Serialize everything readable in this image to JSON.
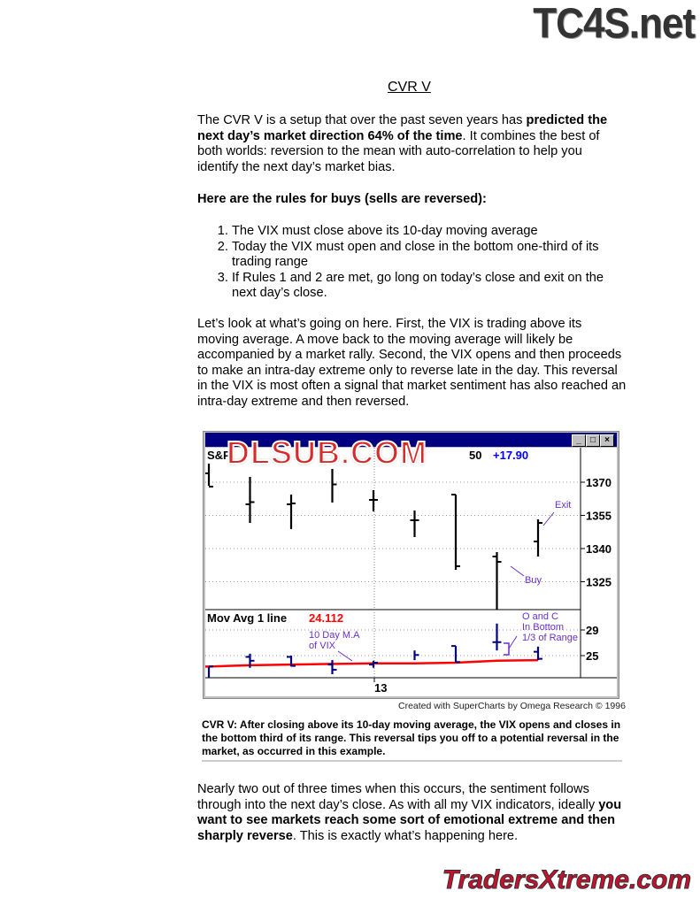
{
  "logos": {
    "top": "TC4S.net",
    "watermark": "DLSUB.COM",
    "bottom": "TradersXtreme.com"
  },
  "title": "CVR V",
  "intro": {
    "p1a": "The CVR V is a setup that over the past seven years has ",
    "p1b": "predicted the next day’s market direction 64% of the time",
    "p1c": ". It combines the best of both worlds: reversion to the mean with auto-correlation to help you identify the next day’s market bias."
  },
  "rules_heading": "Here are the rules for buys (sells are reversed):",
  "rules": [
    "The VIX must close above its 10-day moving average",
    "Today the VIX must open and close in the bottom one-third of its trading range",
    "If Rules 1 and 2 are met, go long on today’s close and exit on the next day’s close."
  ],
  "explanation": "Let’s look at what’s going on here. First, the VIX is trading above its moving average. A move back to the moving average will likely be accompanied by a market rally. Second, the VIX opens and then proceeds to make an intra-day extreme only to reverse late in the day. This reversal in the VIX is most often a signal that market sentiment has also reached an intra-day extreme and then reversed.",
  "chart_window": {
    "buttons": [
      "_",
      "□",
      "×"
    ]
  },
  "chart_data": {
    "type": "ohlc",
    "price_panel": {
      "label": "S&P",
      "last_fragment": "50",
      "change": "+17.90",
      "change_color": "#0000ff",
      "yticks": [
        1370,
        1355,
        1340,
        1325
      ],
      "ylim": [
        1312,
        1382
      ],
      "bars": [
        {
          "o": 1374,
          "h": 1378.4,
          "l": 1368.4,
          "c": 1368
        },
        {
          "o": 1360,
          "h": 1372.4,
          "l": 1351.6,
          "c": 1361
        },
        {
          "o": 1360,
          "h": 1364.4,
          "l": 1348.8,
          "c": 1360.4
        },
        {
          "o": null,
          "h": 1376,
          "l": 1360.8,
          "c": 1369
        },
        {
          "o": 1362,
          "h": 1366.4,
          "l": 1356.8,
          "c": 1362
        },
        {
          "o": 1352.8,
          "h": 1357.2,
          "l": 1345.2,
          "c": 1352.8
        },
        {
          "o": 1364.4,
          "h": 1364.4,
          "l": 1330.4,
          "c": 1332
        },
        {
          "o": 1336.4,
          "h": 1338.4,
          "l": 1312,
          "c": 1334
        },
        {
          "o": 1343.2,
          "h": 1353.2,
          "l": 1336.4,
          "c": 1351.6
        }
      ],
      "annotations": {
        "buy": "Buy",
        "exit": "Exit"
      }
    },
    "vix_panel": {
      "label": "Mov Avg 1 line",
      "value": "24.112",
      "value_color": "#ff0000",
      "bar_color": "#000080",
      "ma_color": "#ff0000",
      "yticks": [
        29,
        25
      ],
      "ylim": [
        21.3,
        31.5
      ],
      "bars": [
        {
          "o": null,
          "h": 23.2,
          "l": 21.4,
          "c": 23.3
        },
        {
          "o": 24.8,
          "h": 25.3,
          "l": 23.1,
          "c": 24.2
        },
        {
          "o": 24.8,
          "h": 25,
          "l": 23.3,
          "c": 23.4
        },
        {
          "o": 23.6,
          "h": 24.3,
          "l": 22.1,
          "c": 22.8
        },
        {
          "o": 23.6,
          "h": 24.2,
          "l": 23.1,
          "c": 23.9
        },
        {
          "o": null,
          "h": 25.8,
          "l": 24.3,
          "c": 25.1
        },
        {
          "o": 26.5,
          "h": 26.5,
          "l": 23.9,
          "c": 24.0
        },
        {
          "o": 27.1,
          "h": 30,
          "l": 25.8,
          "c": 27.1
        },
        {
          "o": 25.6,
          "h": 26.4,
          "l": 24.3,
          "c": 24.5
        }
      ],
      "ma": [
        23.3,
        23.5,
        23.6,
        23.7,
        23.8,
        23.8,
        23.9,
        24.2,
        24.3
      ],
      "annotations": {
        "ma_label_1": "10 Day M.A",
        "ma_label_2": "of VIX",
        "oc_1": "O and C",
        "oc_2": "In Bottom",
        "oc_3": "1/3 of Range"
      }
    },
    "xtick": "13"
  },
  "credit": "Created with SuperCharts by Omega Research © 1996",
  "caption": "CVR V: After closing above its 10-day moving average, the VIX opens and closes in the bottom third of its range. This reversal tips you off to a potential reversal in the market, as occurred in this example.",
  "closing": {
    "a": "Nearly two out of three times when this occurs, the sentiment follows through into the next day’s close. As with all my VIX indicators, ideally ",
    "b": "you want to see markets reach some sort of emotional extreme and then sharply reverse",
    "c": ". This is exactly what’s happening here."
  }
}
